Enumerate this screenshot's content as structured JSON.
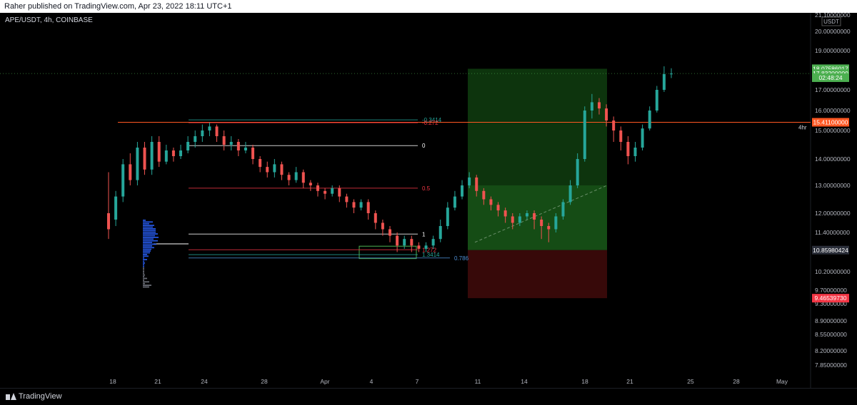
{
  "header": {
    "publish_text": "Raher published on TradingView.com, Apr 23, 2022 18:11 UTC+1"
  },
  "symbol_line": "APE/USDT, 4h, COINBASE",
  "footer": {
    "brand": "TradingView"
  },
  "colors": {
    "up": "#26a69a",
    "down": "#ef5350",
    "bg": "#000000",
    "axis_text": "#b2b5be",
    "long_profit": "#0f3d0f",
    "long_stop": "#3d0a0a",
    "level_line": "#ff5722"
  },
  "chart_data": {
    "type": "candlestick",
    "symbol": "APE/USDT",
    "timeframe": "4h",
    "exchange": "COINBASE",
    "currency": "USDT",
    "y_ticks": [
      "21.10000000",
      "20.00000000",
      "19.00000000",
      "17.00000000",
      "16.00000000",
      "15.00000000",
      "14.00000000",
      "13.00000000",
      "12.00000000",
      "11.40000000",
      "10.20000000",
      "9.70000000",
      "9.30000000",
      "8.90000000",
      "8.55000000",
      "8.20000000",
      "7.85000000"
    ],
    "y_tick_values": [
      21.1,
      20.0,
      19.0,
      17.0,
      16.0,
      15.0,
      14.0,
      13.0,
      12.0,
      11.4,
      10.2,
      9.7,
      9.3,
      8.9,
      8.55,
      8.2,
      7.85
    ],
    "x_ticks": [
      "18",
      "21",
      "24",
      "28",
      "Apr",
      "4",
      "7",
      "11",
      "14",
      "18",
      "21",
      "25",
      "28",
      "May"
    ],
    "price_badges": [
      {
        "label": "18.07586017",
        "value": 18.07586017,
        "color": "#4caf50"
      },
      {
        "label": "17.83200000",
        "value": 17.832,
        "color": "#4caf50"
      },
      {
        "label": "02:48:24",
        "value": 17.62,
        "color": "#4caf50"
      },
      {
        "label": "15.41100000",
        "value": 15.411,
        "color": "#ff5722"
      },
      {
        "label": "10.85980424",
        "value": 10.85980424,
        "color": "#2a2e39"
      },
      {
        "label": "9.46539730",
        "value": 9.4653973,
        "color": "#f23645"
      }
    ],
    "level_line_label": "4hr",
    "fib_levels": [
      {
        "label": "-0.3414",
        "value": 15.53
      },
      {
        "label": "-0.272",
        "value": 15.39
      },
      {
        "label": "0",
        "value": 14.47
      },
      {
        "label": "0.5",
        "value": 12.9
      },
      {
        "label": "1",
        "value": 11.35
      },
      {
        "label": "1.272",
        "value": 10.87
      },
      {
        "label": "1.3414",
        "value": 10.72
      },
      {
        "label": "0.786",
        "value": 10.62
      }
    ],
    "candles": [
      [
        12,
        11.5,
        13.5,
        11.2
      ],
      [
        11.8,
        12.6,
        12.8,
        11.6
      ],
      [
        12.6,
        13.8,
        14,
        12.4
      ],
      [
        13.8,
        13.2,
        14.2,
        13
      ],
      [
        13.2,
        14.4,
        14.6,
        13
      ],
      [
        14.4,
        13.6,
        14.6,
        13.4
      ],
      [
        13.6,
        14.6,
        14.8,
        13.4
      ],
      [
        14.6,
        13.9,
        14.8,
        13.7
      ],
      [
        13.9,
        14.3,
        14.5,
        13.8
      ],
      [
        14.3,
        14.1,
        14.4,
        13.9
      ],
      [
        14.1,
        14.3,
        14.5,
        14
      ],
      [
        14.3,
        14.6,
        14.8,
        14.2
      ],
      [
        14.6,
        14.8,
        15,
        14.4
      ],
      [
        14.8,
        15,
        15.3,
        14.6
      ],
      [
        15,
        15.2,
        15.4,
        14.8
      ],
      [
        15.2,
        14.8,
        15.3,
        14.6
      ],
      [
        14.8,
        14.5,
        15,
        14.3
      ],
      [
        14.5,
        14.6,
        14.8,
        14.3
      ],
      [
        14.6,
        14.3,
        14.7,
        14.1
      ],
      [
        14.3,
        14.4,
        14.6,
        14.2
      ],
      [
        14.4,
        14,
        14.5,
        13.8
      ],
      [
        14,
        13.7,
        14.1,
        13.5
      ],
      [
        13.7,
        13.5,
        13.9,
        13.3
      ],
      [
        13.5,
        13.8,
        14,
        13.3
      ],
      [
        13.8,
        13.4,
        13.9,
        13.2
      ],
      [
        13.4,
        13.2,
        13.5,
        13
      ],
      [
        13.2,
        13.5,
        13.7,
        13.1
      ],
      [
        13.5,
        13.1,
        13.6,
        12.9
      ],
      [
        13.1,
        13,
        13.2,
        12.8
      ],
      [
        13,
        12.8,
        13.1,
        12.6
      ],
      [
        12.8,
        12.7,
        12.9,
        12.5
      ],
      [
        12.7,
        12.9,
        13,
        12.6
      ],
      [
        12.9,
        12.6,
        13,
        12.4
      ],
      [
        12.6,
        12.4,
        12.7,
        12.2
      ],
      [
        12.4,
        12.2,
        12.5,
        12
      ],
      [
        12.2,
        12.4,
        12.5,
        12.1
      ],
      [
        12.4,
        12,
        12.5,
        11.8
      ],
      [
        12,
        11.7,
        12.1,
        11.5
      ],
      [
        11.7,
        11.5,
        11.8,
        11.3
      ],
      [
        11.5,
        11.3,
        11.6,
        11.1
      ],
      [
        11.3,
        11,
        11.4,
        10.8
      ],
      [
        11,
        11.2,
        11.3,
        10.9
      ],
      [
        11.2,
        11,
        11.3,
        10.8
      ],
      [
        11,
        10.9,
        11.1,
        10.8
      ],
      [
        10.9,
        11,
        11.1,
        10.8
      ],
      [
        11,
        11.2,
        11.3,
        10.9
      ],
      [
        11.2,
        11.6,
        11.8,
        11.1
      ],
      [
        11.6,
        12.2,
        12.4,
        11.5
      ],
      [
        12.2,
        12.6,
        12.8,
        12.1
      ],
      [
        12.6,
        13,
        13.2,
        12.5
      ],
      [
        13,
        13.3,
        13.5,
        12.9
      ],
      [
        13.3,
        12.8,
        13.4,
        12.6
      ],
      [
        12.8,
        12.5,
        12.9,
        12.3
      ],
      [
        12.5,
        12.3,
        12.6,
        12.1
      ],
      [
        12.3,
        12.1,
        12.4,
        11.9
      ],
      [
        12.1,
        11.9,
        12.2,
        11.7
      ],
      [
        11.9,
        11.7,
        12,
        11.5
      ],
      [
        11.7,
        11.9,
        12,
        11.6
      ],
      [
        11.9,
        12,
        12.1,
        11.8
      ],
      [
        12,
        11.8,
        12.1,
        11.5
      ],
      [
        11.8,
        11.6,
        11.9,
        11.2
      ],
      [
        11.6,
        11.5,
        11.7,
        11.1
      ],
      [
        11.5,
        11.9,
        12,
        11.4
      ],
      [
        11.9,
        12.4,
        12.5,
        11.8
      ],
      [
        12.4,
        13,
        13.2,
        12.3
      ],
      [
        13,
        14,
        14.2,
        12.9
      ],
      [
        14,
        16,
        16.2,
        13.9
      ],
      [
        16,
        16.4,
        16.8,
        15.6
      ],
      [
        16.4,
        16.1,
        16.6,
        15.8
      ],
      [
        16.1,
        15.5,
        16.3,
        15.2
      ],
      [
        15.5,
        15,
        15.7,
        14.6
      ],
      [
        15,
        14.6,
        15.2,
        14.3
      ],
      [
        14.6,
        14.1,
        14.8,
        13.8
      ],
      [
        14.1,
        14.4,
        14.6,
        13.9
      ],
      [
        14.4,
        15.1,
        15.3,
        14.3
      ],
      [
        15.1,
        16,
        16.2,
        15
      ],
      [
        16,
        17,
        17.2,
        15.9
      ],
      [
        17,
        17.8,
        18.2,
        16.9
      ],
      [
        17.8,
        17.83,
        18.1,
        17.6
      ]
    ]
  }
}
